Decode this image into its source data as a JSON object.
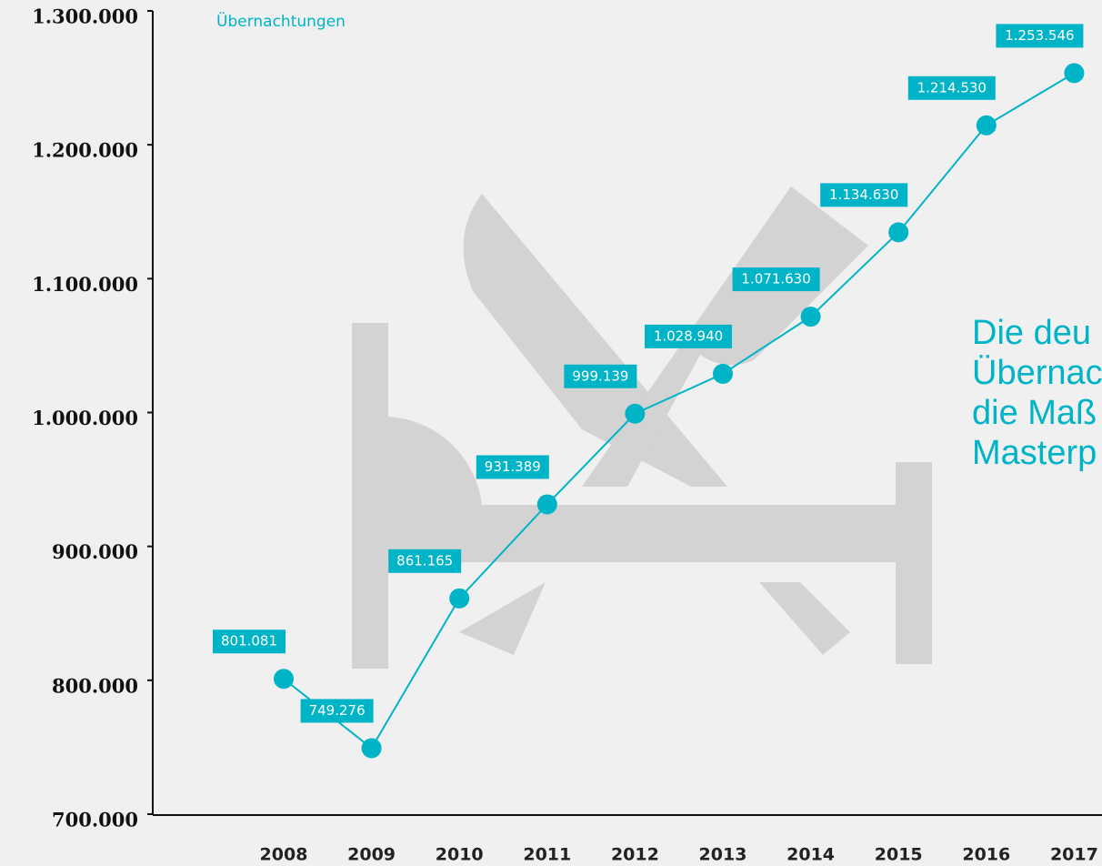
{
  "chart_data": {
    "type": "line",
    "categories": [
      "2008",
      "2009",
      "2010",
      "2011",
      "2012",
      "2013",
      "2014",
      "2015",
      "2016",
      "2017"
    ],
    "series": [
      {
        "name": "Übernachtungen",
        "color": "#00b4c8",
        "values": [
          801081,
          749276,
          861165,
          931389,
          999139,
          1028940,
          1071630,
          1134630,
          1214530,
          1253546
        ],
        "value_labels": [
          "801.081",
          "749.276",
          "861.165",
          "931.389",
          "999.139",
          "1.028.940",
          "1.071.630",
          "1.134.630",
          "1.214.530",
          "1.253.546"
        ]
      }
    ],
    "ylim": [
      700000,
      1300000
    ],
    "yticks": [
      {
        "value": 700000,
        "label": "700.000"
      },
      {
        "value": 800000,
        "label": "800.000"
      },
      {
        "value": 900000,
        "label": "900.000"
      },
      {
        "value": 1000000,
        "label": "1.000.000"
      },
      {
        "value": 1100000,
        "label": "1.100.000"
      },
      {
        "value": 1200000,
        "label": "1.200.000"
      },
      {
        "value": 1300000,
        "label": "1.300.000"
      }
    ],
    "annotation_lines": [
      "Die deu",
      "Übernac",
      "die Maß",
      "Masterp"
    ]
  }
}
